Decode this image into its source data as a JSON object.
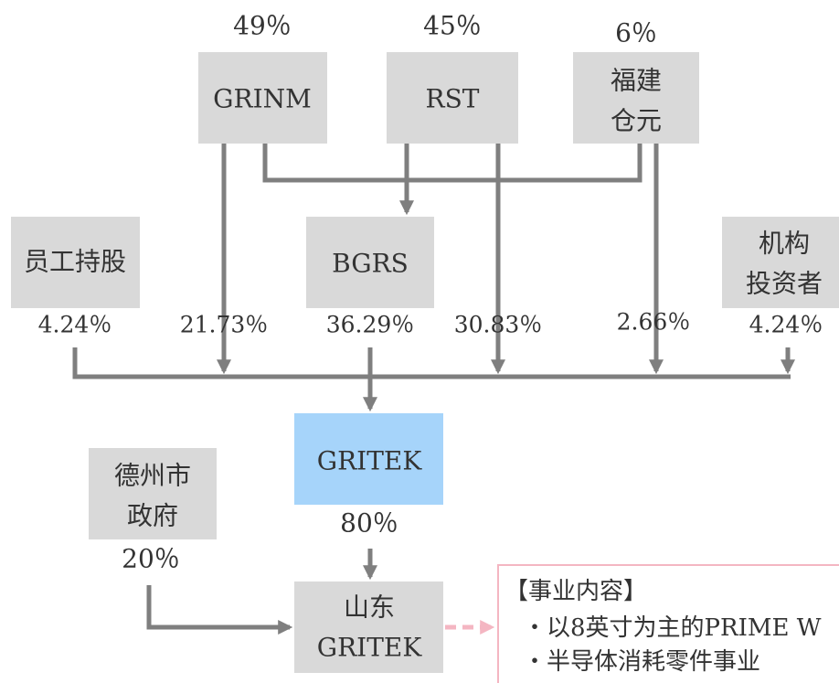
{
  "nodes": {
    "grinm": {
      "label": [
        "GRINM"
      ],
      "share": "49％"
    },
    "rst": {
      "label": [
        "RST"
      ],
      "share": "45％"
    },
    "fujian": {
      "label": [
        "福建",
        "仓元"
      ],
      "share": "6％"
    },
    "employees": {
      "label": [
        "员工持股"
      ],
      "share": "4.24％"
    },
    "bgrs": {
      "label": [
        "BGRS"
      ],
      "share": "36.29％"
    },
    "institutions": {
      "label": [
        "机构",
        "投资者"
      ],
      "share": "4.24％"
    },
    "gritek": {
      "label": [
        "GRITEK"
      ],
      "share": "80％"
    },
    "dezhou": {
      "label": [
        "德州市",
        "政府"
      ],
      "share": "20％"
    },
    "shandong": {
      "label": [
        "山东",
        "GRITEK"
      ]
    }
  },
  "direct_shares": {
    "grinm": "21.73％",
    "rst": "30.83％",
    "fujian": "2.66％"
  },
  "business": {
    "title": "【事业内容】",
    "items": [
      "・以8英寸为主的PRIME W",
      "・半导体消耗零件事业"
    ]
  }
}
